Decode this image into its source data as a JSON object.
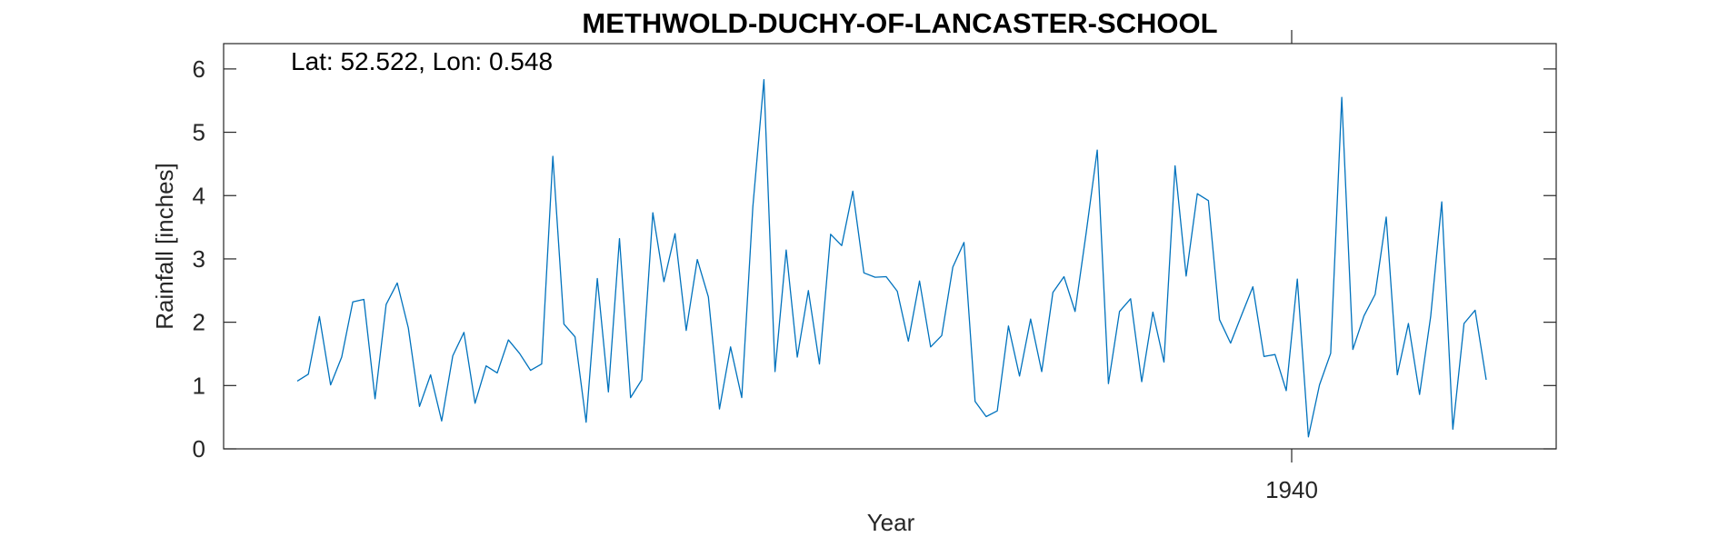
{
  "chart_data": {
    "type": "line",
    "title": "METHWOLD-DUCHY-OF-LANCASTER-SCHOOL",
    "annotation": "Lat: 52.522, Lon: 0.548",
    "xlabel": "Year",
    "ylabel": "Rainfall [inches]",
    "x_tick_labels": [
      "1940"
    ],
    "y_tick_labels": [
      "0",
      "1",
      "2",
      "3",
      "4",
      "5",
      "6"
    ],
    "ylim": [
      0,
      6.4
    ],
    "grid": false,
    "series": [
      {
        "color": "#0072BD",
        "values": [
          1.07,
          1.18,
          2.09,
          1.01,
          1.45,
          2.32,
          2.36,
          0.79,
          2.28,
          2.62,
          1.91,
          0.67,
          1.17,
          0.44,
          1.47,
          1.84,
          0.72,
          1.31,
          1.2,
          1.72,
          1.51,
          1.24,
          1.34,
          4.62,
          1.97,
          1.77,
          0.42,
          2.69,
          0.9,
          3.32,
          0.81,
          1.09,
          3.73,
          2.64,
          3.4,
          1.87,
          2.99,
          2.4,
          0.63,
          1.61,
          0.81,
          3.82,
          5.83,
          1.22,
          3.14,
          1.45,
          2.5,
          1.34,
          3.39,
          3.21,
          4.07,
          2.78,
          2.71,
          2.72,
          2.49,
          1.7,
          2.65,
          1.61,
          1.79,
          2.87,
          3.26,
          0.75,
          0.51,
          0.6,
          1.94,
          1.15,
          2.05,
          1.22,
          2.47,
          2.72,
          2.17,
          3.41,
          4.72,
          1.03,
          2.17,
          2.37,
          1.06,
          2.16,
          1.37,
          4.47,
          2.73,
          4.03,
          3.92,
          2.04,
          1.67,
          2.12,
          2.56,
          1.46,
          1.49,
          0.92,
          2.68,
          0.19,
          1.01,
          1.51,
          5.55,
          1.57,
          2.1,
          2.44,
          3.66,
          1.17,
          1.98,
          0.86,
          2.09,
          3.9,
          0.31,
          1.98,
          2.19,
          1.09
        ]
      }
    ]
  }
}
